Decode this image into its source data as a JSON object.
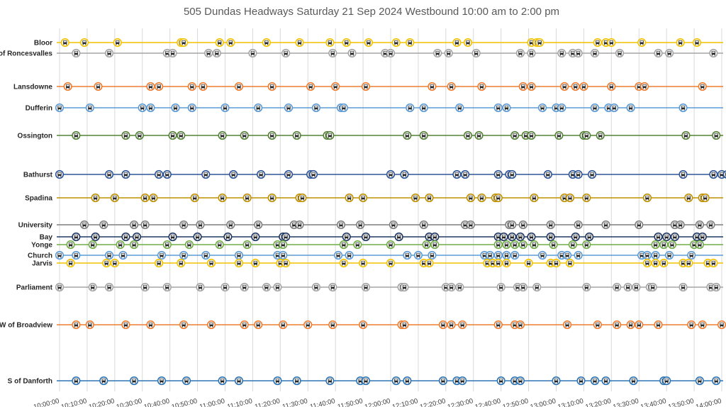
{
  "chart_data": {
    "type": "scatter",
    "title": "505 Dundas Headways Saturday 21 Sep 2024 Westbound 10:00 am to 2:00 pm",
    "x_ticks": [
      "10:00:00",
      "10:10:00",
      "10:20:00",
      "10:30:00",
      "10:40:00",
      "10:50:00",
      "11:00:00",
      "11:10:00",
      "11:20:00",
      "11:30:00",
      "11:40:00",
      "11:50:00",
      "12:00:00",
      "12:10:00",
      "12:20:00",
      "12:30:00",
      "12:40:00",
      "12:50:00",
      "13:00:00",
      "13:10:00",
      "13:20:00",
      "13:30:00",
      "13:40:00",
      "13:50:00",
      "14:00:00"
    ],
    "xlim": [
      "10:00:00",
      "14:00:00"
    ],
    "grid": "vertical",
    "marker": "streetcar",
    "series": [
      {
        "name": "Bloor",
        "color": "#f2c200",
        "times": [
          "10:02",
          "10:09",
          "10:21",
          "10:44",
          "10:45",
          "10:58",
          "11:02",
          "11:15",
          "11:27",
          "11:38",
          "11:44",
          "11:52",
          "12:02",
          "12:07",
          "12:24",
          "12:28",
          "12:51",
          "12:53",
          "12:54",
          "13:15",
          "13:18",
          "13:20",
          "13:31",
          "13:45",
          "13:51"
        ]
      },
      {
        "name": "E of Roncesvalles",
        "color": "#a5a5a5",
        "times": [
          "10:06",
          "10:18",
          "10:39",
          "10:41",
          "10:54",
          "10:57",
          "11:10",
          "11:22",
          "11:39",
          "11:46",
          "11:58",
          "12:00",
          "12:17",
          "12:21",
          "12:31",
          "12:47",
          "12:51",
          "13:02",
          "13:06",
          "13:08",
          "13:14",
          "13:23",
          "13:37",
          "13:41",
          "13:57"
        ]
      },
      {
        "name": "Lansdowne",
        "color": "#ed7d31",
        "times": [
          "10:03",
          "10:14",
          "10:33",
          "10:36",
          "10:48",
          "10:52",
          "11:05",
          "11:17",
          "11:31",
          "11:40",
          "11:51",
          "12:15",
          "12:22",
          "12:33",
          "12:48",
          "12:51",
          "13:03",
          "13:07",
          "13:10",
          "13:20",
          "13:30",
          "13:32",
          "13:53"
        ]
      },
      {
        "name": "Dufferin",
        "color": "#5b9bd5",
        "times": [
          "10:00",
          "10:11",
          "10:30",
          "10:33",
          "10:42",
          "10:48",
          "11:00",
          "11:12",
          "11:23",
          "11:33",
          "11:42",
          "11:43",
          "12:07",
          "12:12",
          "12:25",
          "12:39",
          "12:42",
          "12:55",
          "13:00",
          "13:02",
          "13:14",
          "13:19",
          "13:21",
          "13:27",
          "13:46"
        ]
      },
      {
        "name": "Ossington",
        "color": "#548235",
        "times": [
          "10:06",
          "10:24",
          "10:29",
          "10:41",
          "10:44",
          "10:59",
          "11:07",
          "11:17",
          "11:26",
          "11:37",
          "11:38",
          "12:06",
          "12:12",
          "12:28",
          "12:32",
          "12:45",
          "12:49",
          "12:51",
          "13:01",
          "13:10",
          "13:11",
          "13:16",
          "13:47",
          "13:58"
        ]
      },
      {
        "name": "Bathurst",
        "color": "#2e5597",
        "times": [
          "10:00",
          "10:18",
          "10:24",
          "10:36",
          "10:39",
          "10:53",
          "11:03",
          "11:13",
          "11:23",
          "11:31",
          "11:32",
          "12:00",
          "12:05",
          "12:24",
          "12:27",
          "12:39",
          "12:43",
          "12:44",
          "12:57",
          "13:06",
          "13:08",
          "13:13",
          "13:46",
          "13:57",
          "14:00",
          "14:02"
        ]
      },
      {
        "name": "Spadina",
        "color": "#bf9000",
        "times": [
          "10:13",
          "10:20",
          "10:31",
          "10:34",
          "10:49",
          "10:59",
          "11:08",
          "11:17",
          "11:27",
          "11:28",
          "11:45",
          "11:50",
          "12:09",
          "12:14",
          "12:29",
          "12:33",
          "12:38",
          "12:39",
          "12:52",
          "13:03",
          "13:05",
          "13:11",
          "13:33",
          "13:48",
          "13:53",
          "13:54"
        ]
      },
      {
        "name": "University",
        "color": "#7f7f7f",
        "times": [
          "10:09",
          "10:16",
          "10:27",
          "10:31",
          "10:45",
          "10:51",
          "11:02",
          "11:12",
          "11:25",
          "11:27",
          "11:42",
          "11:49",
          "12:01",
          "12:12",
          "12:27",
          "12:29",
          "12:43",
          "12:44",
          "12:48",
          "12:58",
          "13:08",
          "13:18",
          "13:30",
          "13:43",
          "13:45",
          "13:52",
          "13:56"
        ]
      },
      {
        "name": "Bay",
        "color": "#1f3864",
        "times": [
          "10:06",
          "10:13",
          "10:24",
          "10:28",
          "10:41",
          "10:50",
          "11:01",
          "11:11",
          "11:21",
          "11:22",
          "11:44",
          "11:51",
          "12:03",
          "12:14",
          "12:16",
          "12:39",
          "12:41",
          "12:44",
          "12:47",
          "12:51",
          "12:58",
          "13:07",
          "13:12",
          "13:37",
          "13:40",
          "13:43",
          "13:51",
          "13:53"
        ]
      },
      {
        "name": "Yonge",
        "color": "#70ad47",
        "times": [
          "10:04",
          "10:12",
          "10:22",
          "10:27",
          "10:39",
          "10:47",
          "10:58",
          "11:08",
          "11:19",
          "11:21",
          "11:43",
          "11:48",
          "12:00",
          "12:13",
          "12:16",
          "12:39",
          "12:42",
          "12:45",
          "12:48",
          "12:52",
          "12:59",
          "13:06",
          "13:11",
          "13:36",
          "13:39",
          "13:42",
          "13:50",
          "13:52"
        ]
      },
      {
        "name": "Church",
        "color": "#5b9bd5",
        "times": [
          "10:00",
          "10:06",
          "10:18",
          "10:23",
          "10:37",
          "10:45",
          "10:53",
          "11:05",
          "11:19",
          "11:21",
          "11:41",
          "11:45",
          "12:06",
          "12:10",
          "12:15",
          "12:34",
          "12:36",
          "12:39",
          "12:42",
          "12:45",
          "12:55",
          "13:02",
          "13:04",
          "13:08",
          "13:31",
          "13:33",
          "13:36",
          "13:41",
          "13:49"
        ]
      },
      {
        "name": "Jarvis",
        "color": "#f2c200",
        "times": [
          "10:04",
          "10:17",
          "10:20",
          "10:36",
          "10:44",
          "10:55",
          "11:05",
          "11:11",
          "11:20",
          "11:22",
          "11:43",
          "11:50",
          "12:00",
          "12:12",
          "12:14",
          "12:35",
          "12:37",
          "12:39",
          "12:42",
          "12:50",
          "12:58",
          "13:00",
          "13:05",
          "13:33",
          "13:36",
          "13:39",
          "13:46",
          "13:48",
          "13:55",
          "13:57"
        ]
      },
      {
        "name": "Parliament",
        "color": "#a5a5a5",
        "times": [
          "10:00",
          "10:12",
          "10:18",
          "10:31",
          "10:39",
          "10:51",
          "11:00",
          "11:07",
          "11:15",
          "11:19",
          "11:33",
          "11:39",
          "11:51",
          "12:04",
          "12:05",
          "12:20",
          "12:22",
          "12:25",
          "12:40",
          "12:46",
          "12:48",
          "12:53",
          "13:11",
          "13:22",
          "13:26",
          "13:29",
          "13:34",
          "13:35",
          "13:46",
          "13:56",
          "13:58"
        ]
      },
      {
        "name": "W of Broadview",
        "color": "#ed7d31",
        "times": [
          "10:06",
          "10:11",
          "10:24",
          "10:33",
          "10:45",
          "10:55",
          "11:07",
          "11:12",
          "11:21",
          "11:30",
          "11:39",
          "11:50",
          "12:04",
          "12:05",
          "12:19",
          "12:22",
          "12:26",
          "12:39",
          "12:45",
          "12:47",
          "13:04",
          "13:15",
          "13:22",
          "13:27",
          "13:30",
          "13:37",
          "13:49",
          "13:53",
          "14:00"
        ]
      },
      {
        "name": "S of Danforth",
        "color": "#2e75b6",
        "times": [
          "10:06",
          "10:16",
          "10:27",
          "10:37",
          "10:46",
          "10:59",
          "11:05",
          "11:19",
          "11:26",
          "11:38",
          "11:49",
          "11:51",
          "12:02",
          "12:06",
          "12:19",
          "12:24",
          "12:26",
          "12:40",
          "12:45",
          "12:47",
          "13:00",
          "13:09",
          "13:14",
          "13:18",
          "13:28",
          "13:39",
          "13:40",
          "13:52",
          "13:58"
        ]
      }
    ]
  }
}
